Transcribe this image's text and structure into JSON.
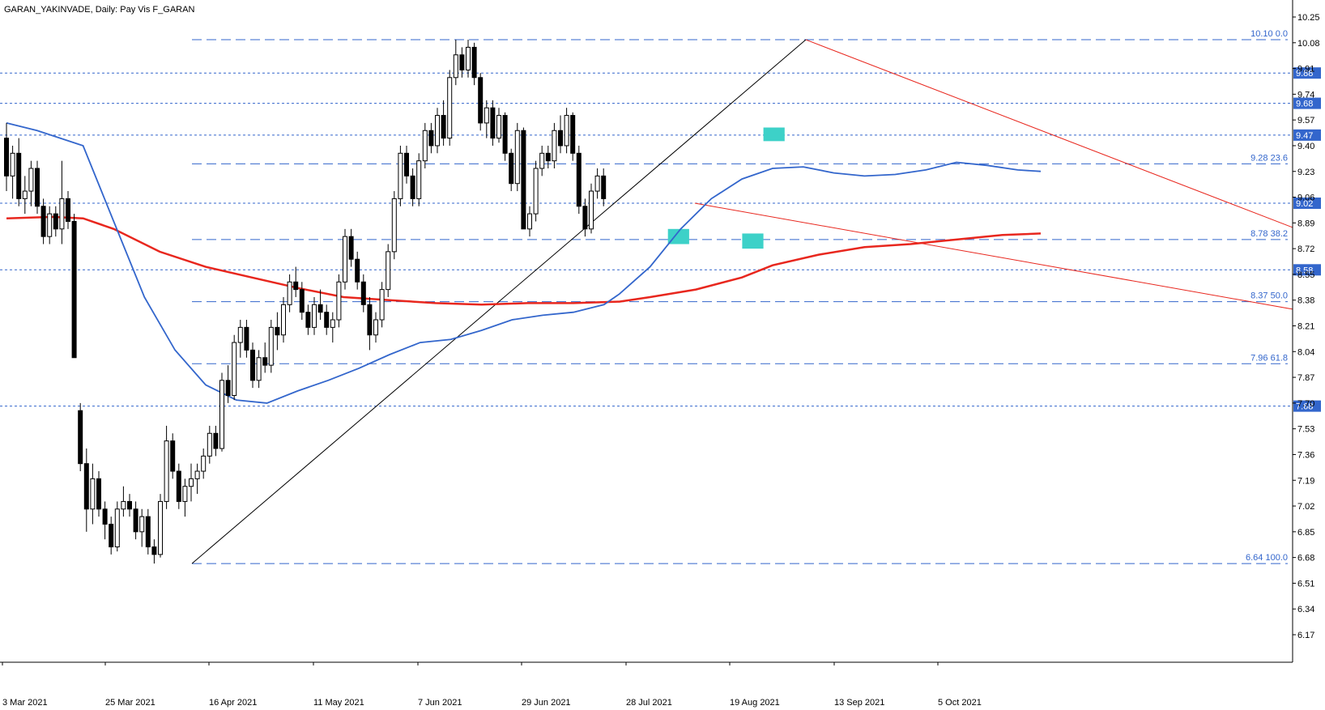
{
  "header": {
    "symbol": "GARAN_YAKINVADE",
    "period": "Daily:",
    "indicator_text": "Pay Vis F_GARAN"
  },
  "colors": {
    "background": "#ffffff",
    "candle_up_body": "#ffffff",
    "candle_down_body": "#000000",
    "candle_outline": "#000000",
    "ma_fast": "#3366cc",
    "ma_slow": "#e8271e",
    "trendline_red": "#e8271e",
    "trendline_black": "#000000",
    "fib_line": "#3366cc",
    "hline": "#3366cc",
    "badge_bg": "#3366cc",
    "highlight": "#3dd1c8",
    "axis": "#000000"
  },
  "chart_data": {
    "type": "candlestick",
    "x_dates": [
      "3 Mar 2021",
      "25 Mar 2021",
      "16 Apr 2021",
      "11 May 2021",
      "7 Jun 2021",
      "29 Jun 2021",
      "28 Jul 2021",
      "19 Aug 2021",
      "13 Sep 2021",
      "5 Oct 2021"
    ],
    "y_ticks": [
      10.25,
      10.08,
      9.91,
      9.74,
      9.57,
      9.4,
      9.23,
      9.06,
      8.89,
      8.72,
      8.55,
      8.38,
      8.21,
      8.04,
      7.87,
      7.7,
      7.53,
      7.36,
      7.19,
      7.02,
      6.85,
      6.68,
      6.51,
      6.34,
      6.17
    ],
    "ylim": [
      6.0,
      10.4
    ],
    "grid": false,
    "candles": [
      [
        9.45,
        9.55,
        9.1,
        9.2
      ],
      [
        9.2,
        9.4,
        9.05,
        9.35
      ],
      [
        9.35,
        9.45,
        9.0,
        9.05
      ],
      [
        9.05,
        9.2,
        8.95,
        9.1
      ],
      [
        9.1,
        9.3,
        9.0,
        9.25
      ],
      [
        9.25,
        9.3,
        8.95,
        9.0
      ],
      [
        9.0,
        9.05,
        8.75,
        8.8
      ],
      [
        8.8,
        9.0,
        8.75,
        8.95
      ],
      [
        8.95,
        9.0,
        8.8,
        8.85
      ],
      [
        8.85,
        9.3,
        8.75,
        9.05
      ],
      [
        9.05,
        9.1,
        8.85,
        8.9
      ],
      [
        8.9,
        8.95,
        8.0,
        8.0
      ],
      [
        7.65,
        7.7,
        7.25,
        7.3
      ],
      [
        7.3,
        7.4,
        6.85,
        7.0
      ],
      [
        7.0,
        7.3,
        6.9,
        7.2
      ],
      [
        7.2,
        7.25,
        6.95,
        7.0
      ],
      [
        7.0,
        7.05,
        6.8,
        6.9
      ],
      [
        6.9,
        6.95,
        6.7,
        6.75
      ],
      [
        6.75,
        7.05,
        6.72,
        7.0
      ],
      [
        7.0,
        7.15,
        6.95,
        7.05
      ],
      [
        7.05,
        7.1,
        6.95,
        7.0
      ],
      [
        7.0,
        7.05,
        6.8,
        6.85
      ],
      [
        6.85,
        7.0,
        6.75,
        6.95
      ],
      [
        6.95,
        7.0,
        6.7,
        6.75
      ],
      [
        6.75,
        6.8,
        6.64,
        6.7
      ],
      [
        6.7,
        7.1,
        6.68,
        7.05
      ],
      [
        7.05,
        7.55,
        7.0,
        7.45
      ],
      [
        7.45,
        7.5,
        7.2,
        7.25
      ],
      [
        7.25,
        7.3,
        7.0,
        7.05
      ],
      [
        7.05,
        7.2,
        6.95,
        7.15
      ],
      [
        7.15,
        7.3,
        7.05,
        7.2
      ],
      [
        7.2,
        7.3,
        7.1,
        7.25
      ],
      [
        7.25,
        7.4,
        7.2,
        7.35
      ],
      [
        7.35,
        7.55,
        7.3,
        7.5
      ],
      [
        7.5,
        7.55,
        7.35,
        7.4
      ],
      [
        7.4,
        7.9,
        7.38,
        7.85
      ],
      [
        7.85,
        7.95,
        7.7,
        7.75
      ],
      [
        7.75,
        8.15,
        7.72,
        8.1
      ],
      [
        8.1,
        8.25,
        8.0,
        8.2
      ],
      [
        8.2,
        8.25,
        8.0,
        8.05
      ],
      [
        8.05,
        8.1,
        7.8,
        7.85
      ],
      [
        7.85,
        8.05,
        7.8,
        8.0
      ],
      [
        8.0,
        8.1,
        7.9,
        7.95
      ],
      [
        7.95,
        8.25,
        7.9,
        8.2
      ],
      [
        8.2,
        8.3,
        8.05,
        8.15
      ],
      [
        8.15,
        8.4,
        8.1,
        8.35
      ],
      [
        8.35,
        8.55,
        8.3,
        8.5
      ],
      [
        8.5,
        8.6,
        8.4,
        8.45
      ],
      [
        8.45,
        8.5,
        8.25,
        8.3
      ],
      [
        8.3,
        8.35,
        8.15,
        8.2
      ],
      [
        8.2,
        8.4,
        8.15,
        8.35
      ],
      [
        8.35,
        8.45,
        8.25,
        8.3
      ],
      [
        8.3,
        8.35,
        8.15,
        8.2
      ],
      [
        8.2,
        8.3,
        8.1,
        8.25
      ],
      [
        8.25,
        8.55,
        8.2,
        8.5
      ],
      [
        8.5,
        8.85,
        8.45,
        8.8
      ],
      [
        8.8,
        8.85,
        8.6,
        8.65
      ],
      [
        8.65,
        8.7,
        8.45,
        8.5
      ],
      [
        8.5,
        8.55,
        8.3,
        8.35
      ],
      [
        8.35,
        8.4,
        8.05,
        8.15
      ],
      [
        8.15,
        8.3,
        8.1,
        8.25
      ],
      [
        8.25,
        8.5,
        8.2,
        8.45
      ],
      [
        8.45,
        8.75,
        8.4,
        8.7
      ],
      [
        8.7,
        9.1,
        8.65,
        9.05
      ],
      [
        9.05,
        9.4,
        9.0,
        9.35
      ],
      [
        9.35,
        9.4,
        9.15,
        9.2
      ],
      [
        9.2,
        9.25,
        9.0,
        9.05
      ],
      [
        9.05,
        9.35,
        9.0,
        9.3
      ],
      [
        9.3,
        9.55,
        9.25,
        9.5
      ],
      [
        9.5,
        9.55,
        9.35,
        9.4
      ],
      [
        9.4,
        9.65,
        9.35,
        9.6
      ],
      [
        9.6,
        9.7,
        9.4,
        9.45
      ],
      [
        9.45,
        9.9,
        9.4,
        9.85
      ],
      [
        9.85,
        10.1,
        9.8,
        10.0
      ],
      [
        10.0,
        10.05,
        9.85,
        9.9
      ],
      [
        9.9,
        10.1,
        9.85,
        10.05
      ],
      [
        10.05,
        10.08,
        9.8,
        9.85
      ],
      [
        9.85,
        9.88,
        9.5,
        9.55
      ],
      [
        9.55,
        9.7,
        9.45,
        9.65
      ],
      [
        9.65,
        9.7,
        9.4,
        9.45
      ],
      [
        9.45,
        9.65,
        9.42,
        9.6
      ],
      [
        9.6,
        9.62,
        9.3,
        9.35
      ],
      [
        9.35,
        9.38,
        9.1,
        9.15
      ],
      [
        9.15,
        9.55,
        9.1,
        9.5
      ],
      [
        9.5,
        9.52,
        8.85,
        8.85
      ],
      [
        8.85,
        9.0,
        8.8,
        8.95
      ],
      [
        8.95,
        9.3,
        8.9,
        9.25
      ],
      [
        9.25,
        9.4,
        9.2,
        9.35
      ],
      [
        9.35,
        9.4,
        9.25,
        9.3
      ],
      [
        9.3,
        9.55,
        9.25,
        9.5
      ],
      [
        9.5,
        9.6,
        9.35,
        9.4
      ],
      [
        9.4,
        9.65,
        9.35,
        9.6
      ],
      [
        9.6,
        9.62,
        9.3,
        9.35
      ],
      [
        9.35,
        9.4,
        8.95,
        9.0
      ],
      [
        9.0,
        9.05,
        8.8,
        8.85
      ],
      [
        8.85,
        9.15,
        8.82,
        9.1
      ],
      [
        9.1,
        9.25,
        9.05,
        9.2
      ],
      [
        9.2,
        9.25,
        9.0,
        9.05
      ]
    ],
    "candle_dates": [
      "3 Mar 2021",
      "4 Mar 2021",
      "5 Mar 2021",
      "8 Mar 2021",
      "9 Mar 2021",
      "10 Mar 2021",
      "11 Mar 2021",
      "12 Mar 2021",
      "15 Mar 2021",
      "16 Mar 2021",
      "17 Mar 2021",
      "18 Mar 2021",
      "19 Mar 2021",
      "22 Mar 2021",
      "23 Mar 2021",
      "24 Mar 2021",
      "25 Mar 2021",
      "26 Mar 2021",
      "29 Mar 2021",
      "30 Mar 2021",
      "31 Mar 2021",
      "1 Apr 2021",
      "2 Apr 2021",
      "5 Apr 2021",
      "6 Apr 2021",
      "7 Apr 2021",
      "8 Apr 2021",
      "9 Apr 2021",
      "12 Apr 2021",
      "13 Apr 2021",
      "14 Apr 2021",
      "15 Apr 2021",
      "16 Apr 2021",
      "19 Apr 2021",
      "20 Apr 2021",
      "21 Apr 2021",
      "22 Apr 2021",
      "26 Apr 2021",
      "27 Apr 2021",
      "28 Apr 2021",
      "29 Apr 2021",
      "30 Apr 2021",
      "3 May 2021",
      "4 May 2021",
      "5 May 2021",
      "6 May 2021",
      "7 May 2021",
      "10 May 2021",
      "11 May 2021",
      "12 May 2021",
      "13 May 2021",
      "14 May 2021",
      "17 May 2021",
      "18 May 2021",
      "20 May 2021",
      "21 May 2021",
      "24 May 2021",
      "25 May 2021",
      "26 May 2021",
      "27 May 2021",
      "28 May 2021",
      "31 May 2021",
      "1 Jun 2021",
      "2 Jun 2021",
      "3 Jun 2021",
      "4 Jun 2021",
      "7 Jun 2021",
      "8 Jun 2021",
      "9 Jun 2021",
      "10 Jun 2021",
      "11 Jun 2021",
      "14 Jun 2021",
      "15 Jun 2021",
      "16 Jun 2021",
      "17 Jun 2021",
      "18 Jun 2021",
      "21 Jun 2021",
      "22 Jun 2021",
      "23 Jun 2021",
      "24 Jun 2021",
      "25 Jun 2021",
      "28 Jun 2021",
      "29 Jun 2021",
      "30 Jun 2021",
      "1 Jul 2021",
      "2 Jul 2021",
      "5 Jul 2021",
      "6 Jul 2021",
      "7 Jul 2021",
      "8 Jul 2021",
      "9 Jul 2021",
      "12 Jul 2021",
      "13 Jul 2021",
      "14 Jul 2021",
      "16 Jul 2021",
      "19 Jul 2021",
      "26 Jul 2021",
      "27 Jul 2021"
    ],
    "ma_fast": [
      [
        0,
        9.55
      ],
      [
        4,
        9.5
      ],
      [
        10,
        9.4
      ],
      [
        14,
        8.9
      ],
      [
        18,
        8.4
      ],
      [
        22,
        8.05
      ],
      [
        26,
        7.82
      ],
      [
        30,
        7.72
      ],
      [
        34,
        7.7
      ],
      [
        38,
        7.78
      ],
      [
        42,
        7.85
      ],
      [
        46,
        7.93
      ],
      [
        50,
        8.02
      ],
      [
        54,
        8.1
      ],
      [
        58,
        8.12
      ],
      [
        62,
        8.18
      ],
      [
        66,
        8.25
      ],
      [
        70,
        8.28
      ],
      [
        74,
        8.3
      ],
      [
        78,
        8.35
      ],
      [
        80,
        8.42
      ],
      [
        84,
        8.6
      ],
      [
        88,
        8.85
      ],
      [
        92,
        9.05
      ],
      [
        96,
        9.18
      ],
      [
        100,
        9.25
      ],
      [
        104,
        9.26
      ],
      [
        108,
        9.22
      ],
      [
        112,
        9.2
      ],
      [
        116,
        9.21
      ],
      [
        120,
        9.24
      ],
      [
        124,
        9.29
      ],
      [
        128,
        9.27
      ],
      [
        132,
        9.24
      ],
      [
        135,
        9.23
      ]
    ],
    "ma_slow": [
      [
        0,
        8.92
      ],
      [
        6,
        8.93
      ],
      [
        10,
        8.92
      ],
      [
        14,
        8.85
      ],
      [
        20,
        8.7
      ],
      [
        26,
        8.6
      ],
      [
        32,
        8.53
      ],
      [
        38,
        8.46
      ],
      [
        44,
        8.4
      ],
      [
        50,
        8.38
      ],
      [
        56,
        8.36
      ],
      [
        62,
        8.35
      ],
      [
        68,
        8.36
      ],
      [
        74,
        8.36
      ],
      [
        80,
        8.37
      ],
      [
        84,
        8.4
      ],
      [
        90,
        8.45
      ],
      [
        96,
        8.53
      ],
      [
        100,
        8.61
      ],
      [
        106,
        8.68
      ],
      [
        112,
        8.73
      ],
      [
        118,
        8.75
      ],
      [
        124,
        8.78
      ],
      [
        130,
        8.81
      ],
      [
        135,
        8.82
      ]
    ],
    "hlines": [
      {
        "value": 9.88,
        "label": "9.88"
      },
      {
        "value": 9.68,
        "label": "9.68"
      },
      {
        "value": 9.47,
        "label": "9.47"
      },
      {
        "value": 9.02,
        "label": "9.02"
      },
      {
        "value": 8.58,
        "label": "8.58"
      },
      {
        "value": 7.68,
        "label": "7.68"
      }
    ],
    "fib_levels": [
      {
        "value": 10.1,
        "label": "10.10 0.0"
      },
      {
        "value": 9.28,
        "label": "9.28 23.6"
      },
      {
        "value": 8.78,
        "label": "8.78 38.2"
      },
      {
        "value": 8.37,
        "label": "8.37 50.0"
      },
      {
        "value": 7.96,
        "label": "7.96 61.8"
      },
      {
        "value": 6.64,
        "label": "6.64 100.0"
      }
    ],
    "trendlines": [
      {
        "color": "black",
        "from": [
          24,
          6.64
        ],
        "to": [
          104,
          10.1
        ]
      },
      {
        "color": "red",
        "from": [
          104,
          10.1
        ],
        "to": [
          168,
          8.86
        ]
      },
      {
        "color": "red",
        "from": [
          92,
          9.02
        ],
        "to": [
          168,
          8.38
        ]
      }
    ],
    "highlight_boxes": [
      {
        "x0": 114,
        "x1": 118,
        "y0": 8.75,
        "y1": 8.85
      },
      {
        "x0": 128,
        "x1": 132,
        "y0": 8.72,
        "y1": 8.82
      },
      {
        "x0": 132,
        "x1": 136,
        "y0": 9.43,
        "y1": 9.52
      }
    ]
  }
}
